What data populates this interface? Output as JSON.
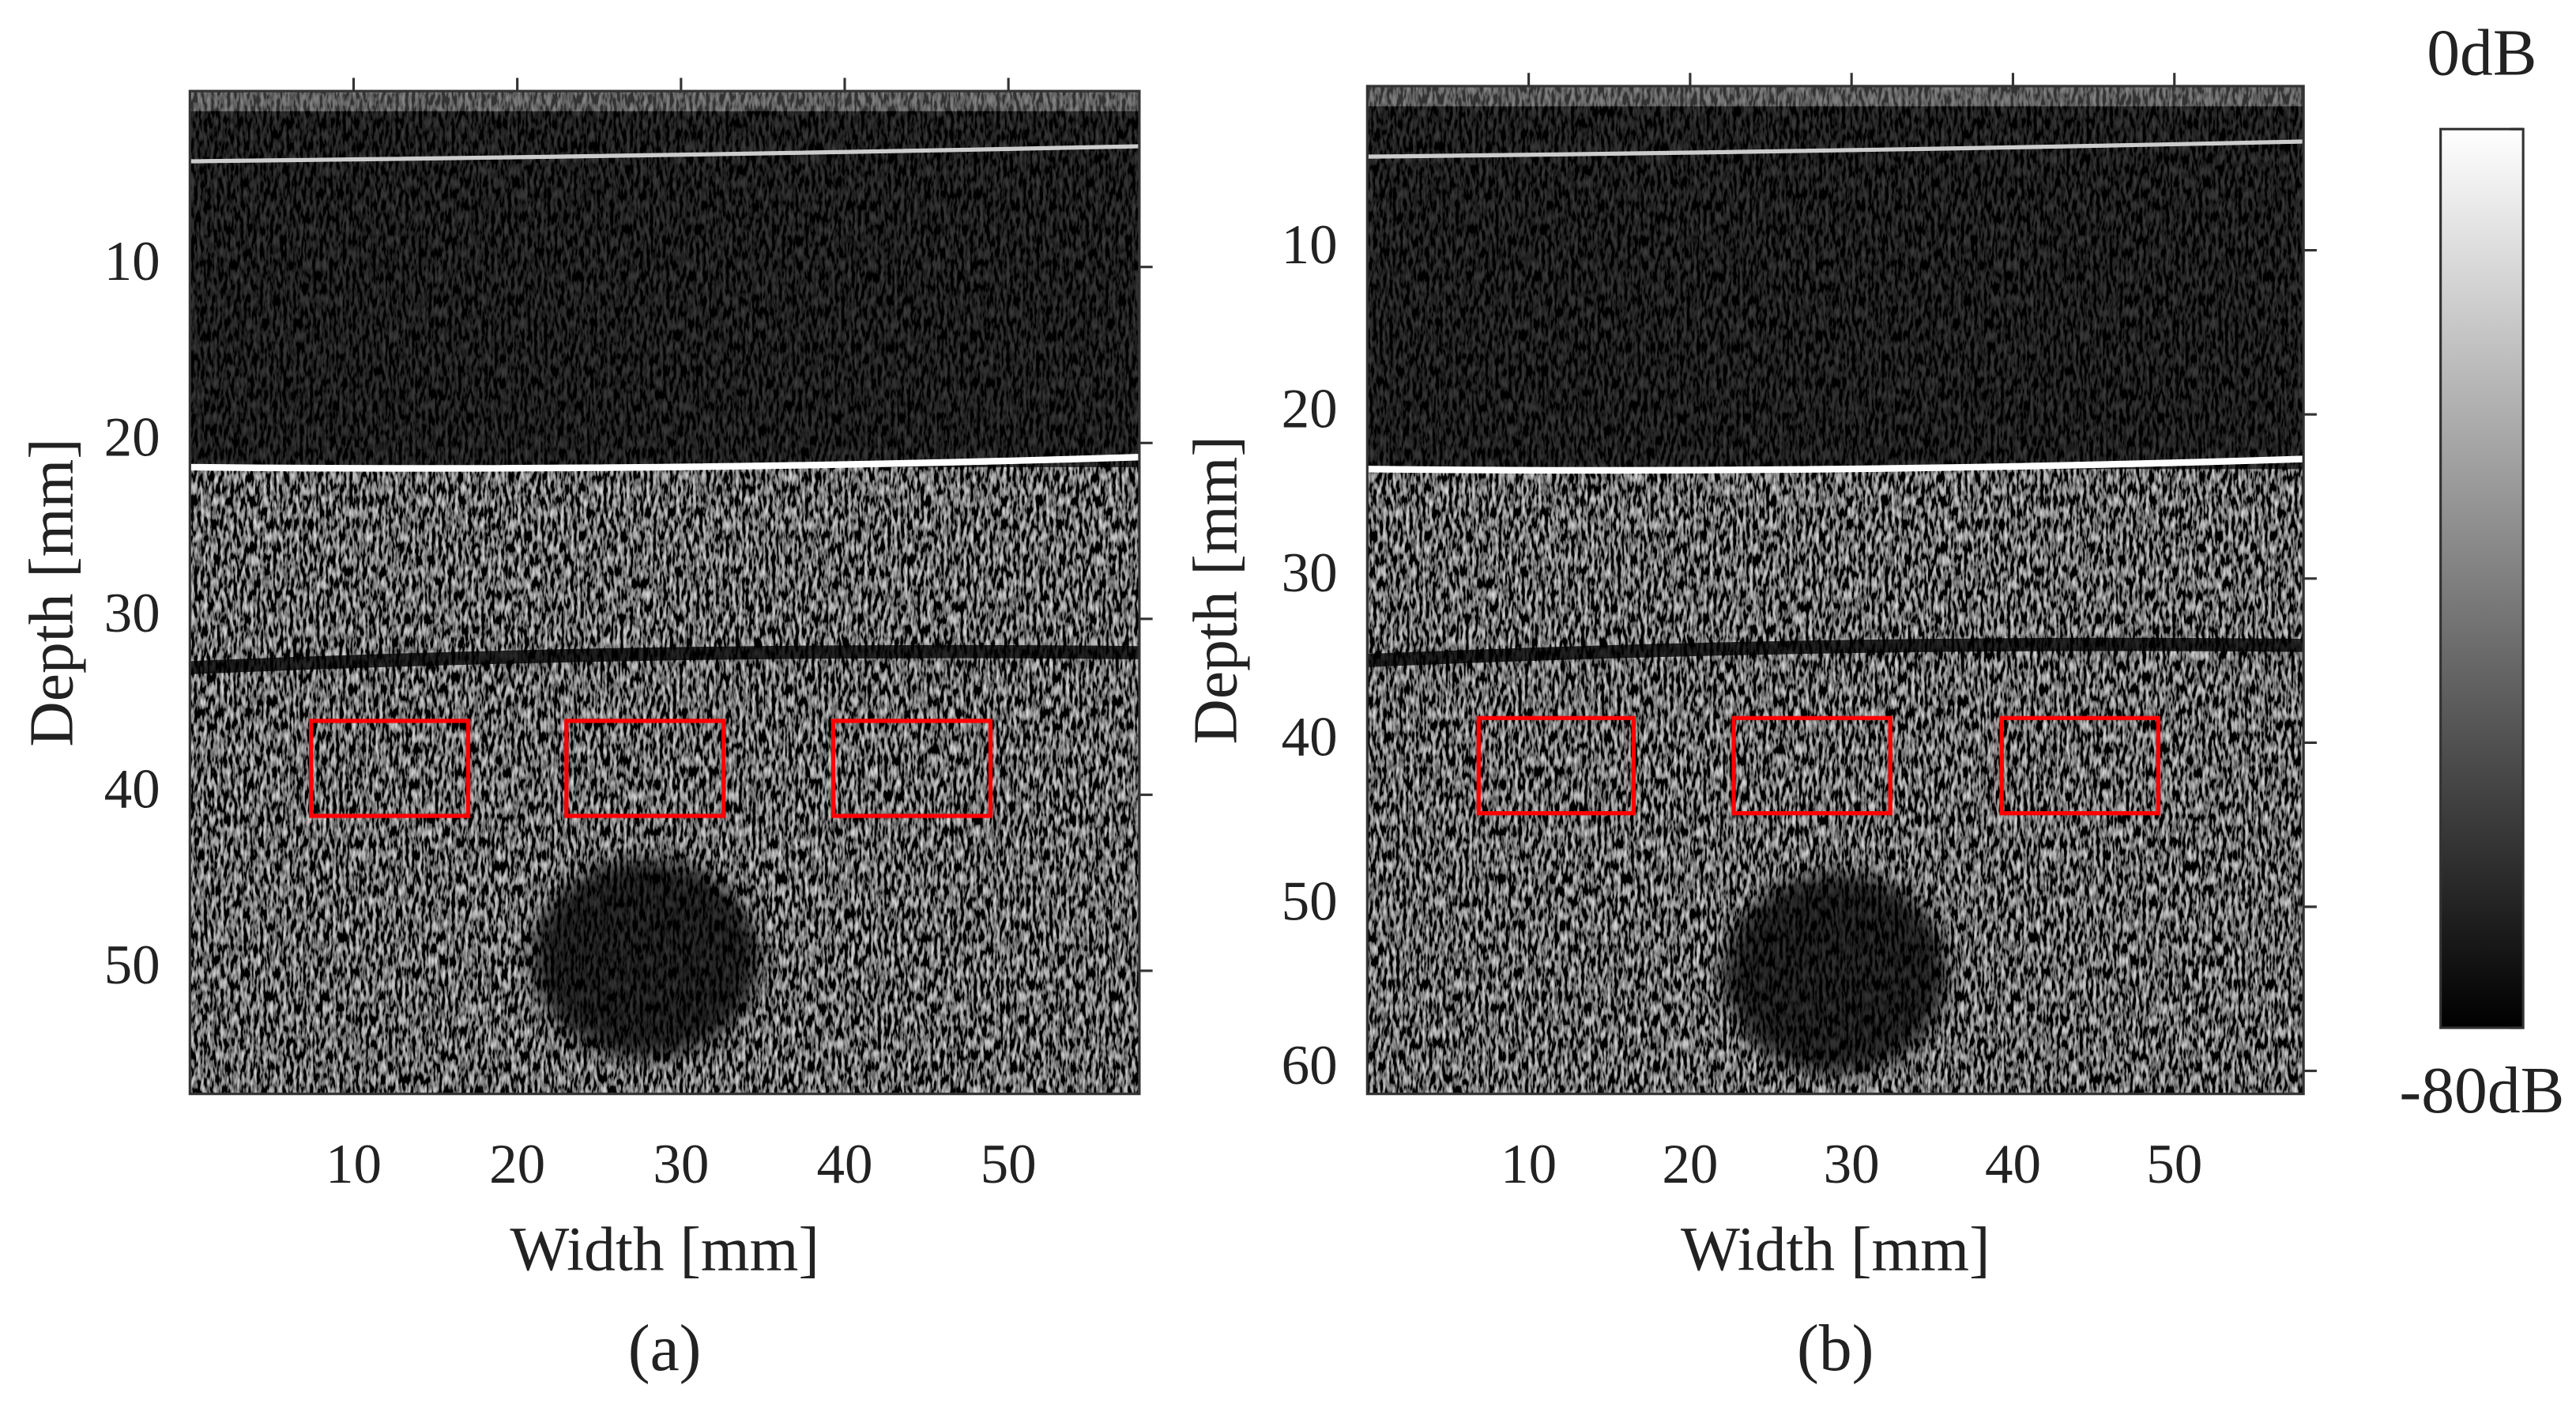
{
  "chart_data": [
    {
      "type": "image",
      "panel_label": "(a)",
      "xlabel": "Width [mm]",
      "ylabel": "Depth [mm]",
      "xlim": [
        0,
        58
      ],
      "ylim": [
        0,
        57
      ],
      "xticks": [
        10,
        20,
        30,
        40,
        50
      ],
      "yticks": [
        10,
        20,
        30,
        40,
        50
      ],
      "roi_color": "#ff0000",
      "rois": [
        {
          "x": [
            7.4,
            17.0
          ],
          "y": [
            35.8,
            41.2
          ]
        },
        {
          "x": [
            23.0,
            32.6
          ],
          "y": [
            35.8,
            41.2
          ]
        },
        {
          "x": [
            39.3,
            48.9
          ],
          "y": [
            35.8,
            41.2
          ]
        }
      ]
    },
    {
      "type": "image",
      "panel_label": "(b)",
      "xlabel": "Width [mm]",
      "ylabel": "Depth [mm]",
      "xlim": [
        0,
        58
      ],
      "ylim": [
        0,
        61.4
      ],
      "xticks": [
        10,
        20,
        30,
        40,
        50
      ],
      "yticks": [
        10,
        20,
        30,
        40,
        50,
        60
      ],
      "roi_color": "#ff0000",
      "rois": [
        {
          "x": [
            6.9,
            16.5
          ],
          "y": [
            38.5,
            44.3
          ]
        },
        {
          "x": [
            22.7,
            32.4
          ],
          "y": [
            38.5,
            44.3
          ]
        },
        {
          "x": [
            39.3,
            49.0
          ],
          "y": [
            38.5,
            44.3
          ]
        }
      ]
    }
  ],
  "colorbar": {
    "clim": [
      -80,
      0
    ],
    "ticks": [
      {
        "value": 0,
        "label": "0dB"
      },
      {
        "value": -80,
        "label": "-80dB"
      }
    ]
  }
}
